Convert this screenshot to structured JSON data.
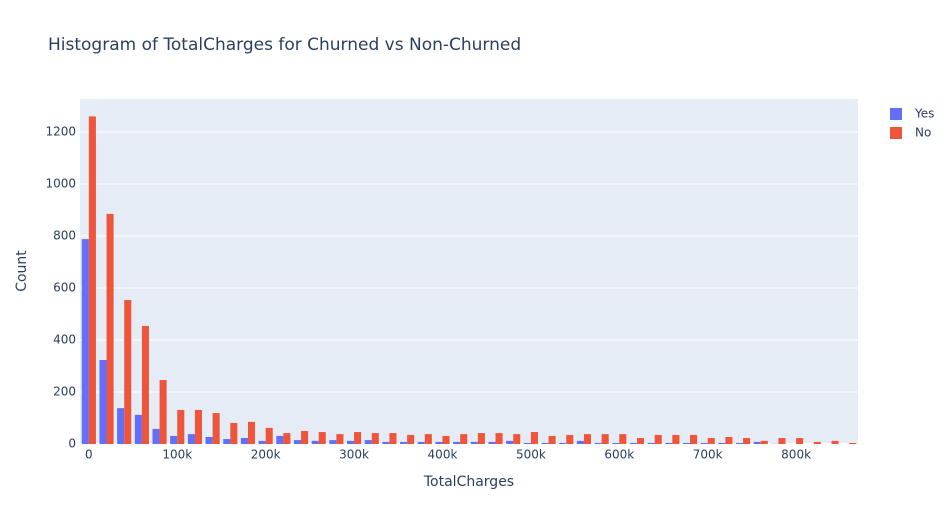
{
  "chart_data": {
    "type": "histogram",
    "title": "Histogram of TotalCharges for Churned vs Non-Churned",
    "x_label": "TotalCharges",
    "y_label": "Count",
    "bins": [
      -10000,
      10000,
      30000,
      50000,
      70000,
      90000,
      110000,
      130000,
      150000,
      170000,
      190000,
      210000,
      230000,
      250000,
      270000,
      290000,
      310000,
      330000,
      350000,
      370000,
      390000,
      410000,
      430000,
      450000,
      470000,
      490000,
      510000,
      530000,
      550000,
      570000,
      590000,
      610000,
      630000,
      650000,
      670000,
      690000,
      710000,
      730000,
      750000,
      770000,
      790000,
      810000,
      830000,
      850000,
      870000
    ],
    "series": [
      {
        "name": "Yes",
        "color": "#636efa",
        "values": [
          788,
          323,
          138,
          112,
          58,
          31,
          38,
          27,
          19,
          23,
          12,
          31,
          15,
          12,
          15,
          12,
          15,
          8,
          8,
          8,
          8,
          8,
          8,
          8,
          12,
          4,
          4,
          4,
          12,
          4,
          4,
          4,
          4,
          4,
          4,
          4,
          4,
          4,
          8,
          1,
          0,
          0,
          0,
          0
        ]
      },
      {
        "name": "No",
        "color": "#EF553B",
        "values": [
          1260,
          885,
          554,
          454,
          246,
          131,
          131,
          119,
          81,
          85,
          62,
          42,
          50,
          46,
          38,
          46,
          42,
          42,
          35,
          38,
          31,
          38,
          42,
          42,
          38,
          46,
          31,
          35,
          38,
          38,
          38,
          23,
          35,
          35,
          35,
          23,
          27,
          23,
          12,
          23,
          23,
          8,
          12,
          4
        ]
      }
    ],
    "xlim": [
      -10000,
      870000
    ],
    "xticks": [
      0,
      {
        "value": 100000,
        "label": "100k"
      },
      {
        "value": 200000,
        "label": "200k"
      },
      {
        "value": 300000,
        "label": "300k"
      },
      {
        "value": 400000,
        "label": "400k"
      },
      {
        "value": 500000,
        "label": "500k"
      },
      {
        "value": 600000,
        "label": "600k"
      },
      {
        "value": 700000,
        "label": "700k"
      },
      {
        "value": 800000,
        "label": "800k"
      }
    ],
    "ylim": [
      0,
      1327
    ],
    "yticks": [
      0,
      200,
      400,
      600,
      800,
      1000,
      1200
    ],
    "grid": true,
    "legend": "top-right"
  }
}
